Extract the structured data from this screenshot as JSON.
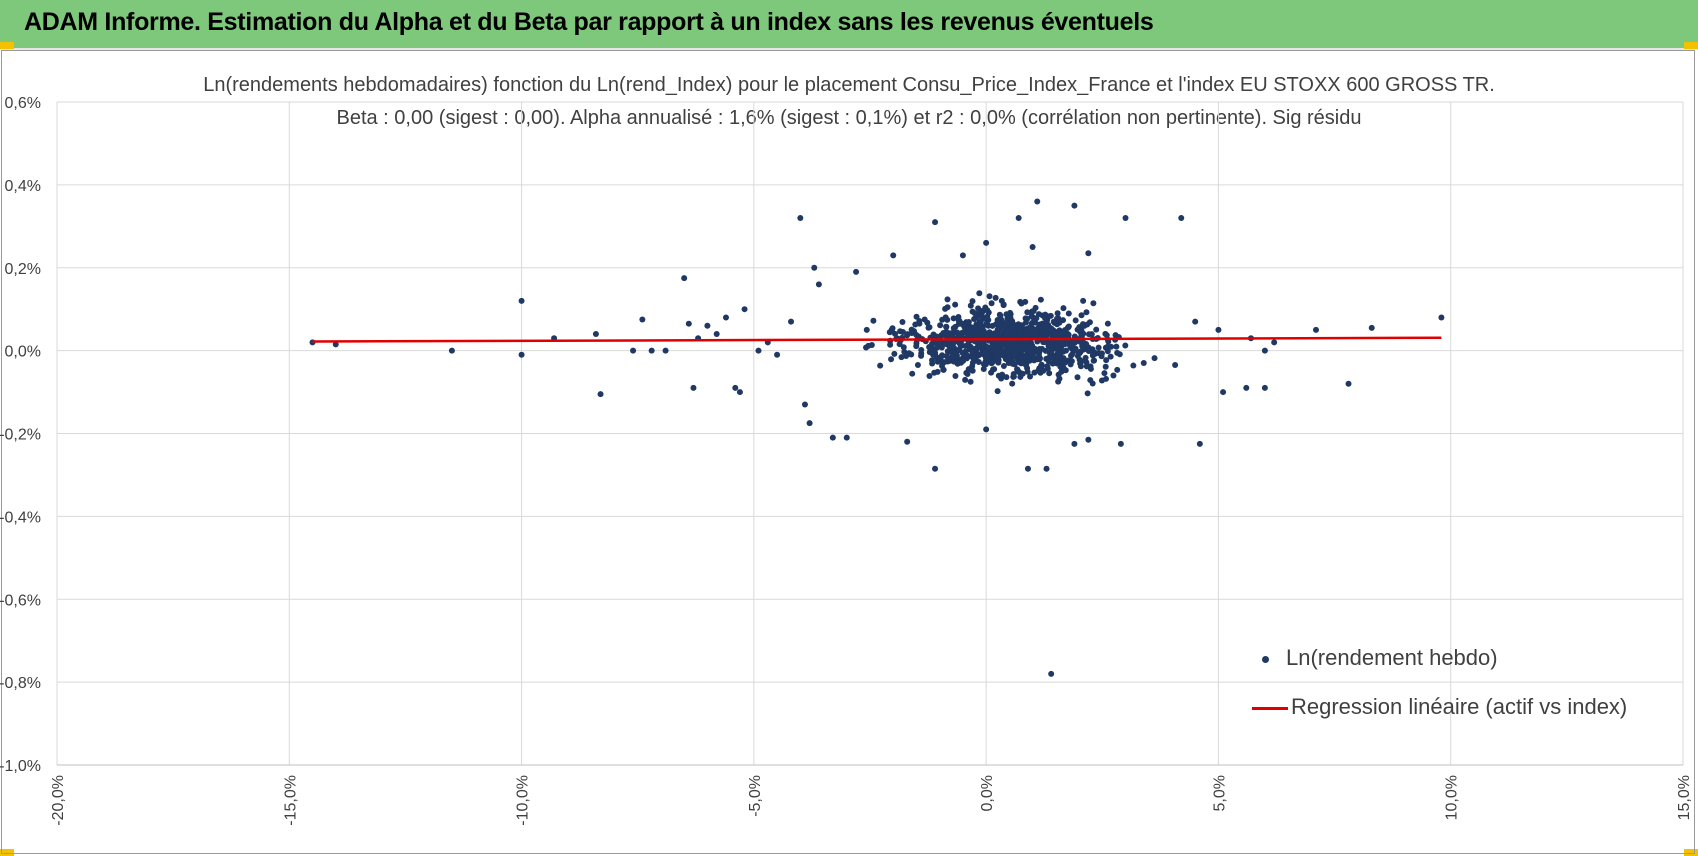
{
  "header": {
    "title": "ADAM Informe. Estimation du Alpha et du Beta par rapport à un index sans les revenus éventuels"
  },
  "colors": {
    "banner": "#7ec87c",
    "accent_corner": "#f2c200",
    "points": "#1f3864",
    "regression": "#e00000",
    "grid": "#d9d9d9",
    "text": "#404040"
  },
  "chart_data": {
    "type": "scatter",
    "title": "Ln(rendements hebdomadaires) fonction du Ln(rend_Index) pour le placement Consu_Price_Index_France et l'index EU STOXX 600 GROSS TR.",
    "subtitle": "Beta : 0,00 (sigest : 0,00). Alpha annualisé : 1,6% (sigest : 0,1%) et r2 : 0,0% (corrélation non pertinente). Sig résidu",
    "xlim": [
      -20.0,
      15.0
    ],
    "ylim": [
      -1.0,
      0.6
    ],
    "x_ticks": [
      "-20,0%",
      "-15,0%",
      "-10,0%",
      "-5,0%",
      "0,0%",
      "5,0%",
      "10,0%",
      "15,0%"
    ],
    "y_ticks": [
      "0,6%",
      "0,4%",
      "0,2%",
      "0,0%",
      "-0,2%",
      "-0,4%",
      "-0,6%",
      "-0,8%",
      "-1,0%"
    ],
    "grid": true,
    "legend_position": "bottom-right",
    "series": [
      {
        "name": "Ln(rendement hebdo)",
        "kind": "scatter",
        "color": "#1f3864",
        "points": [
          [
            -14.5,
            0.02
          ],
          [
            -14.0,
            0.015
          ],
          [
            -11.5,
            0.0
          ],
          [
            -10.0,
            0.12
          ],
          [
            -10.0,
            -0.01
          ],
          [
            -9.3,
            0.03
          ],
          [
            -8.4,
            0.04
          ],
          [
            -8.3,
            -0.105
          ],
          [
            -7.6,
            0.0
          ],
          [
            -7.4,
            0.075
          ],
          [
            -7.2,
            0.0
          ],
          [
            -6.9,
            0.0
          ],
          [
            -6.5,
            0.175
          ],
          [
            -6.4,
            0.065
          ],
          [
            -6.3,
            -0.09
          ],
          [
            -6.2,
            0.03
          ],
          [
            -6.0,
            0.06
          ],
          [
            -5.8,
            0.04
          ],
          [
            -5.6,
            0.08
          ],
          [
            -5.4,
            -0.09
          ],
          [
            -5.3,
            -0.1
          ],
          [
            -5.2,
            0.1
          ],
          [
            -4.9,
            0.0
          ],
          [
            -4.7,
            0.02
          ],
          [
            -4.5,
            -0.01
          ],
          [
            -4.2,
            0.07
          ],
          [
            -4.0,
            0.32
          ],
          [
            -3.9,
            -0.13
          ],
          [
            -3.8,
            -0.175
          ],
          [
            -3.7,
            0.2
          ],
          [
            -3.6,
            0.16
          ],
          [
            -3.3,
            -0.21
          ],
          [
            -3.0,
            -0.21
          ],
          [
            -2.8,
            0.19
          ],
          [
            -2.0,
            0.23
          ],
          [
            -1.7,
            -0.22
          ],
          [
            -1.1,
            0.31
          ],
          [
            -1.1,
            -0.285
          ],
          [
            -0.5,
            0.23
          ],
          [
            0.0,
            0.26
          ],
          [
            0.0,
            -0.19
          ],
          [
            0.7,
            0.32
          ],
          [
            0.9,
            -0.285
          ],
          [
            1.0,
            0.25
          ],
          [
            1.1,
            0.36
          ],
          [
            1.3,
            -0.285
          ],
          [
            1.4,
            -0.78
          ],
          [
            1.9,
            0.35
          ],
          [
            1.9,
            -0.225
          ],
          [
            2.2,
            0.235
          ],
          [
            2.2,
            -0.215
          ],
          [
            2.9,
            -0.225
          ],
          [
            3.0,
            0.32
          ],
          [
            4.2,
            0.32
          ],
          [
            4.5,
            0.07
          ],
          [
            4.6,
            -0.225
          ],
          [
            5.0,
            0.05
          ],
          [
            5.1,
            -0.1
          ],
          [
            5.6,
            -0.09
          ],
          [
            5.7,
            0.03
          ],
          [
            6.0,
            -0.09
          ],
          [
            6.0,
            0.0
          ],
          [
            6.2,
            0.02
          ],
          [
            7.1,
            0.05
          ],
          [
            7.8,
            -0.08
          ],
          [
            8.3,
            0.055
          ],
          [
            9.8,
            0.08
          ]
        ],
        "dense_cluster": {
          "x_center": 0.5,
          "y_center": 0.02,
          "x_spread": 1.6,
          "y_spread": 0.055,
          "count": 950
        }
      },
      {
        "name": "Regression linéaire (actif vs index)",
        "kind": "line",
        "color": "#e00000",
        "points": [
          [
            -14.5,
            0.022
          ],
          [
            9.8,
            0.031
          ]
        ]
      }
    ]
  }
}
